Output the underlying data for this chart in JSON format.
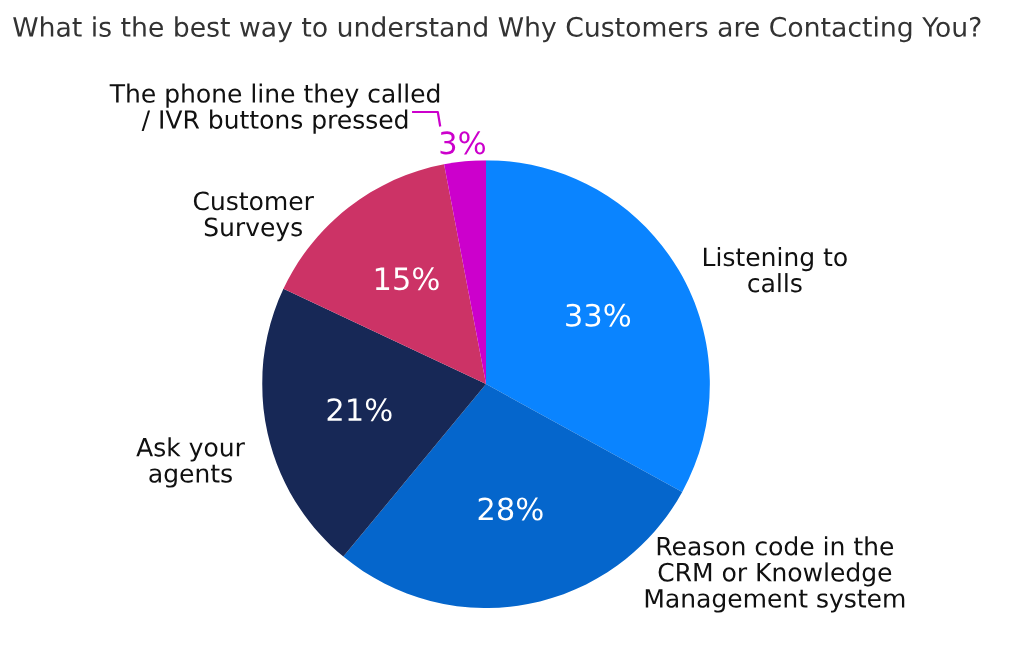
{
  "chart_data": {
    "type": "pie",
    "title": "What is the best way to understand Why Customers are Contacting You?",
    "categories": [
      "Listening to\ncalls",
      "Reason code in the\nCRM or Knowledge\nManagement system",
      "Ask your\nagents",
      "Customer\nSurveys",
      "The phone line they called\n/ IVR buttons pressed"
    ],
    "values": [
      33,
      28,
      21,
      15,
      3
    ],
    "value_labels": [
      "33%",
      "28%",
      "21%",
      "15%",
      "3%"
    ],
    "colors": [
      "#0a84ff",
      "#0566cc",
      "#172856",
      "#cc3366",
      "#cc00cc"
    ]
  }
}
